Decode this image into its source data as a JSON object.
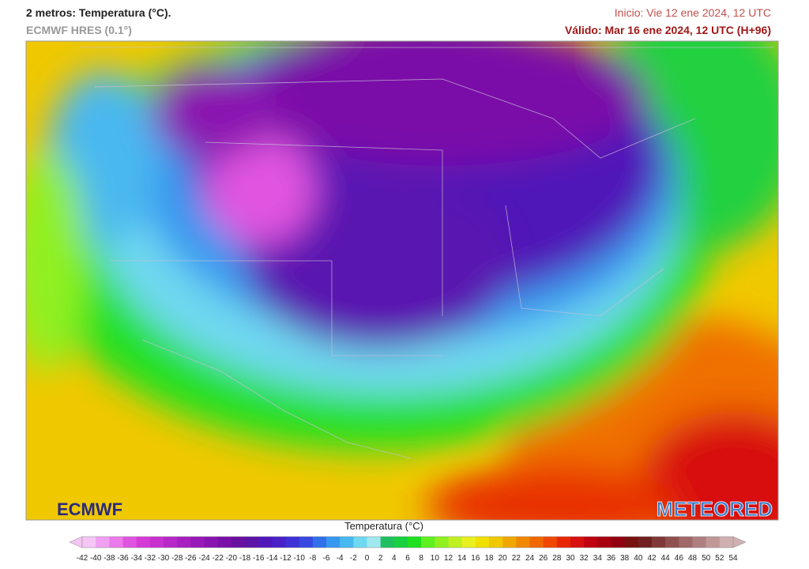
{
  "header": {
    "title": "2 metros: Temperatura (°C).",
    "subtitle": "ECMWF HRES (0.1°)",
    "init": "Inicio: Vie 12 ene 2024, 12 UTC",
    "valid": "Válido: Mar 16 ene 2024, 12 UTC (H+96)"
  },
  "logos": {
    "left": "ECMWF",
    "right": "METEORED"
  },
  "colorbar": {
    "label": "Temperatura (°C)",
    "ticks": [
      -42,
      -40,
      -38,
      -36,
      -34,
      -32,
      -30,
      -28,
      -26,
      -24,
      -22,
      -20,
      -18,
      -16,
      -14,
      -12,
      -10,
      -8,
      -6,
      -4,
      -2,
      0,
      2,
      4,
      6,
      8,
      10,
      12,
      14,
      16,
      18,
      20,
      22,
      24,
      26,
      28,
      30,
      32,
      34,
      36,
      38,
      40,
      42,
      44,
      46,
      48,
      50,
      52,
      54
    ],
    "colors": [
      "#f5c6f5",
      "#f0a0f0",
      "#eb7aeb",
      "#e055e0",
      "#d63ad6",
      "#c830d0",
      "#b828c8",
      "#a820c0",
      "#9818b8",
      "#8a14b0",
      "#7a10a8",
      "#6a10a0",
      "#5c14a8",
      "#5018b8",
      "#4a20c8",
      "#4030d8",
      "#3848e0",
      "#3070e8",
      "#3898f0",
      "#48b8f0",
      "#70d8f0",
      "#a0e8f0",
      "#20c060",
      "#18d040",
      "#20e020",
      "#60f020",
      "#90f020",
      "#c0f020",
      "#e8f020",
      "#f0e000",
      "#f0c800",
      "#f0a800",
      "#f08800",
      "#f06800",
      "#f04800",
      "#e82800",
      "#d81010",
      "#c00010",
      "#a80010",
      "#900010",
      "#781010",
      "#702020",
      "#803838",
      "#905050",
      "#a06868",
      "#b08080",
      "#c09898",
      "#d0b0b0"
    ]
  }
}
